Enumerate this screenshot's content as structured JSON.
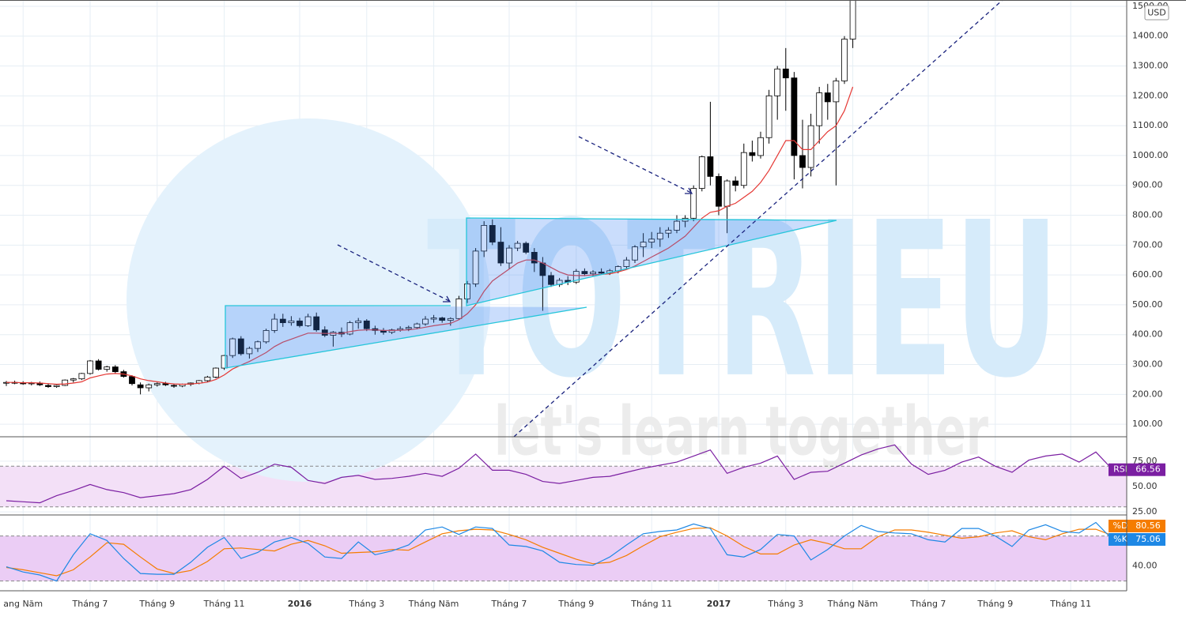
{
  "watermark": {
    "brand": "TOTRIEU",
    "slogan": "let's learn together"
  },
  "currency": "USD",
  "chart_data": [
    {
      "type": "candlestick",
      "categories": [
        null,
        null,
        "ang Năm",
        null,
        null,
        null,
        null,
        null,
        null,
        null,
        "Tháng 7",
        null,
        null,
        null,
        null,
        null,
        null,
        null,
        "Tháng 9",
        null,
        null,
        null,
        null,
        null,
        null,
        null,
        "Tháng 11",
        null,
        null,
        null,
        null,
        null,
        null,
        null,
        null,
        "2016",
        null,
        null,
        null,
        null,
        null,
        null,
        null,
        "Tháng 3",
        null,
        null,
        null,
        null,
        null,
        null,
        null,
        "Tháng Năm",
        null,
        null,
        null,
        null,
        null,
        null,
        null,
        null,
        "Tháng 7",
        null,
        null,
        null,
        null,
        null,
        null,
        null,
        "Tháng 9",
        null,
        null,
        null,
        null,
        null,
        null,
        null,
        null,
        "Tháng 11",
        null,
        null,
        null,
        null,
        null,
        null,
        null,
        "2017",
        null,
        null,
        null,
        null,
        null,
        null,
        null,
        "Tháng 3",
        null,
        null,
        null,
        null,
        null,
        null,
        null,
        "Tháng Năm",
        null,
        null,
        null,
        null,
        null,
        null,
        null,
        null,
        "Tháng 7",
        null,
        null,
        null,
        null,
        null,
        null,
        null,
        "Tháng 9",
        null,
        null,
        null,
        null,
        null,
        null,
        null,
        null,
        "Tháng 11",
        null,
        null,
        null,
        null,
        null
      ],
      "ohlc": [
        [
          238,
          245,
          228,
          240
        ],
        [
          240,
          246,
          234,
          238
        ],
        [
          238,
          244,
          232,
          236
        ],
        [
          236,
          242,
          230,
          238
        ],
        [
          238,
          243,
          228,
          232
        ],
        [
          230,
          236,
          222,
          226
        ],
        [
          226,
          232,
          222,
          230
        ],
        [
          230,
          250,
          228,
          248
        ],
        [
          248,
          255,
          240,
          252
        ],
        [
          252,
          272,
          248,
          270
        ],
        [
          270,
          315,
          266,
          312
        ],
        [
          312,
          318,
          280,
          284
        ],
        [
          284,
          296,
          276,
          292
        ],
        [
          292,
          298,
          270,
          276
        ],
        [
          276,
          282,
          256,
          260
        ],
        [
          260,
          264,
          230,
          236
        ],
        [
          232,
          240,
          200,
          222
        ],
        [
          222,
          236,
          210,
          232
        ],
        [
          232,
          240,
          226,
          236
        ],
        [
          236,
          242,
          228,
          232
        ],
        [
          230,
          236,
          222,
          228
        ],
        [
          228,
          236,
          224,
          234
        ],
        [
          234,
          240,
          228,
          238
        ],
        [
          238,
          248,
          234,
          246
        ],
        [
          246,
          262,
          242,
          258
        ],
        [
          258,
          290,
          254,
          288
        ],
        [
          288,
          332,
          282,
          330
        ],
        [
          330,
          390,
          322,
          386
        ],
        [
          386,
          395,
          330,
          336
        ],
        [
          336,
          360,
          320,
          354
        ],
        [
          354,
          380,
          342,
          376
        ],
        [
          376,
          420,
          370,
          414
        ],
        [
          414,
          470,
          406,
          452
        ],
        [
          452,
          470,
          426,
          440
        ],
        [
          440,
          462,
          430,
          446
        ],
        [
          446,
          456,
          424,
          430
        ],
        [
          430,
          470,
          426,
          460
        ],
        [
          460,
          474,
          410,
          416
        ],
        [
          416,
          428,
          392,
          398
        ],
        [
          398,
          412,
          360,
          408
        ],
        [
          408,
          424,
          392,
          402
        ],
        [
          402,
          446,
          398,
          440
        ],
        [
          440,
          456,
          420,
          446
        ],
        [
          446,
          452,
          412,
          420
        ],
        [
          420,
          430,
          400,
          414
        ],
        [
          414,
          422,
          400,
          408
        ],
        [
          408,
          420,
          402,
          416
        ],
        [
          416,
          428,
          410,
          420
        ],
        [
          420,
          430,
          412,
          424
        ],
        [
          424,
          440,
          418,
          436
        ],
        [
          436,
          462,
          430,
          452
        ],
        [
          452,
          466,
          440,
          456
        ],
        [
          456,
          460,
          440,
          448
        ],
        [
          448,
          458,
          430,
          454
        ],
        [
          454,
          530,
          450,
          520
        ],
        [
          520,
          580,
          506,
          570
        ],
        [
          570,
          690,
          560,
          680
        ],
        [
          680,
          780,
          660,
          766
        ],
        [
          766,
          786,
          700,
          710
        ],
        [
          710,
          760,
          630,
          640
        ],
        [
          640,
          700,
          620,
          690
        ],
        [
          690,
          714,
          680,
          706
        ],
        [
          706,
          712,
          670,
          676
        ],
        [
          676,
          690,
          610,
          640
        ],
        [
          640,
          660,
          480,
          598
        ],
        [
          598,
          610,
          560,
          568
        ],
        [
          568,
          590,
          560,
          582
        ],
        [
          582,
          596,
          566,
          576
        ],
        [
          576,
          620,
          570,
          612
        ],
        [
          612,
          622,
          596,
          604
        ],
        [
          604,
          616,
          596,
          610
        ],
        [
          610,
          622,
          604,
          606
        ],
        [
          606,
          620,
          600,
          614
        ],
        [
          614,
          632,
          606,
          628
        ],
        [
          628,
          660,
          620,
          650
        ],
        [
          650,
          700,
          640,
          694
        ],
        [
          694,
          740,
          660,
          710
        ],
        [
          710,
          744,
          690,
          720
        ],
        [
          720,
          760,
          694,
          740
        ],
        [
          740,
          760,
          724,
          750
        ],
        [
          750,
          800,
          740,
          780
        ],
        [
          780,
          800,
          760,
          790
        ],
        [
          790,
          900,
          780,
          890
        ],
        [
          890,
          1000,
          880,
          996
        ],
        [
          996,
          1180,
          900,
          930
        ],
        [
          930,
          940,
          800,
          830
        ],
        [
          830,
          920,
          740,
          915
        ],
        [
          915,
          930,
          880,
          900
        ],
        [
          900,
          1040,
          890,
          1010
        ],
        [
          1010,
          1050,
          980,
          1000
        ],
        [
          1000,
          1080,
          990,
          1060
        ],
        [
          1060,
          1220,
          1040,
          1200
        ],
        [
          1200,
          1300,
          1120,
          1290
        ],
        [
          1290,
          1360,
          1150,
          1260
        ],
        [
          1260,
          1280,
          920,
          1000
        ],
        [
          1000,
          1120,
          890,
          960
        ],
        [
          960,
          1140,
          930,
          1100
        ],
        [
          1100,
          1230,
          1040,
          1210
        ],
        [
          1210,
          1240,
          1120,
          1180
        ],
        [
          1180,
          1260,
          900,
          1250
        ],
        [
          1250,
          1400,
          1240,
          1390
        ],
        [
          1390,
          1560,
          1360,
          1520
        ],
        null,
        null,
        null,
        null,
        null,
        null,
        null,
        null,
        null,
        null,
        null,
        null,
        null,
        null,
        null,
        null,
        null,
        null,
        null,
        null,
        null,
        null,
        null,
        null,
        null,
        null,
        null,
        null,
        null,
        null,
        null
      ],
      "up_color": "#ffffff",
      "down_color": "#000000",
      "ma_color": "#e53935",
      "ma_values": [
        240,
        240,
        239,
        239,
        238,
        236,
        234,
        235,
        238,
        242,
        255,
        262,
        268,
        270,
        268,
        262,
        252,
        246,
        242,
        238,
        235,
        234,
        235,
        237,
        241,
        250,
        265,
        285,
        298,
        310,
        325,
        340,
        360,
        375,
        385,
        395,
        405,
        405,
        404,
        404,
        404,
        410,
        415,
        416,
        416,
        414,
        414,
        415,
        416,
        420,
        425,
        430,
        434,
        438,
        450,
        470,
        500,
        545,
        580,
        600,
        620,
        640,
        650,
        650,
        640,
        625,
        610,
        600,
        598,
        598,
        600,
        602,
        604,
        610,
        618,
        630,
        645,
        660,
        675,
        690,
        710,
        730,
        760,
        790,
        810,
        815,
        830,
        840,
        860,
        880,
        910,
        950,
        1000,
        1050,
        1050,
        1020,
        1020,
        1050,
        1080,
        1100,
        1150,
        1230,
        null,
        null,
        null,
        null,
        null,
        null,
        null,
        null,
        null,
        null,
        null,
        null,
        null,
        null,
        null,
        null,
        null,
        null,
        null,
        null,
        null,
        null,
        null,
        null,
        null,
        null,
        null,
        null,
        null,
        null,
        null
      ],
      "ylim": [
        58,
        1521
      ],
      "yticks": [
        {
          "value": 100,
          "label": "100.00"
        },
        {
          "value": 200,
          "label": "200.00"
        },
        {
          "value": 300,
          "label": "300.00"
        },
        {
          "value": 400,
          "label": "400.00"
        },
        {
          "value": 500,
          "label": "500.00"
        },
        {
          "value": 600,
          "label": "600.00"
        },
        {
          "value": 700,
          "label": "700.00"
        },
        {
          "value": 800,
          "label": "800.00"
        },
        {
          "value": 900,
          "label": "900.00"
        },
        {
          "value": 1000,
          "label": "1000.00"
        },
        {
          "value": 1100,
          "label": "1100.00"
        },
        {
          "value": 1200,
          "label": "1200.00"
        },
        {
          "value": 1300,
          "label": "1300.00"
        },
        {
          "value": 1400,
          "label": "1400.00"
        },
        {
          "value": 1500,
          "label": "1500.00"
        }
      ],
      "grid": true
    },
    {
      "type": "line",
      "name": "RSI",
      "color": "#7b1fa2",
      "band_color": "#f3e0f7",
      "values": [
        36,
        35,
        34,
        41,
        46,
        52,
        47,
        44,
        39,
        41,
        43,
        47,
        57,
        70,
        58,
        64,
        72,
        69,
        56,
        53,
        59,
        61,
        57,
        58,
        60,
        63,
        60,
        68,
        82,
        66,
        66,
        62,
        55,
        53,
        56,
        59,
        60,
        64,
        68,
        71,
        74,
        80,
        86,
        63,
        69,
        73,
        80,
        57,
        64,
        65,
        73,
        81,
        87,
        91,
        72,
        62,
        66,
        74,
        79,
        70,
        64,
        76,
        80,
        82,
        74,
        84,
        66.56
      ],
      "band": [
        30,
        70
      ],
      "ylim": [
        22,
        99
      ],
      "yticks": [
        {
          "value": 25,
          "label": "25.00"
        },
        {
          "value": 50,
          "label": "50.00"
        },
        {
          "value": 75,
          "label": "75.00"
        }
      ]
    },
    {
      "type": "line",
      "band_color": "#ebcdf5",
      "series": [
        {
          "name": "%D",
          "color": "#f57c00",
          "values": [
            38,
            35,
            31,
            27,
            35,
            52,
            71,
            69,
            52,
            36,
            30,
            34,
            46,
            63,
            64,
            62,
            60,
            69,
            74,
            67,
            57,
            58,
            59,
            62,
            61,
            72,
            83,
            87,
            89,
            88,
            82,
            75,
            65,
            57,
            49,
            43,
            45,
            54,
            67,
            79,
            85,
            90,
            91,
            80,
            66,
            56,
            56,
            68,
            75,
            70,
            63,
            63,
            79,
            88,
            88,
            85,
            81,
            77,
            79,
            84,
            87,
            79,
            75,
            83,
            89,
            89,
            80.56
          ]
        },
        {
          "name": "%K",
          "color": "#1e88e5",
          "values": [
            39,
            32,
            28,
            20,
            55,
            83,
            74,
            50,
            30,
            29,
            29,
            45,
            65,
            78,
            50,
            58,
            72,
            78,
            70,
            52,
            50,
            72,
            55,
            60,
            68,
            88,
            92,
            82,
            92,
            90,
            68,
            66,
            60,
            45,
            42,
            41,
            52,
            68,
            83,
            86,
            88,
            96,
            90,
            55,
            52,
            62,
            82,
            80,
            48,
            62,
            80,
            94,
            86,
            84,
            83,
            75,
            72,
            90,
            90,
            80,
            66,
            88,
            95,
            86,
            84,
            98,
            75.06
          ]
        }
      ],
      "band": [
        20,
        80
      ],
      "ylim": [
        7,
        108
      ],
      "yticks": [
        {
          "value": 40,
          "label": "40.00"
        }
      ]
    }
  ]
}
